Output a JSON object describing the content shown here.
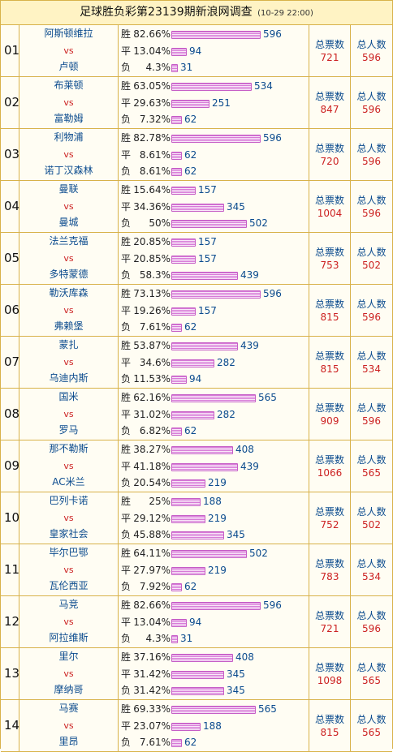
{
  "title": "足球胜负彩第23139期新浪网调查",
  "date": "(10-29 22:00)",
  "labels": {
    "vs": "vs",
    "win": "胜",
    "draw": "平",
    "lose": "负",
    "total_votes": "总票数",
    "total_people": "总人数"
  },
  "matches": [
    {
      "index": "01",
      "home": "阿斯顿维拉",
      "away": "卢顿",
      "win": {
        "pct": "82.66%",
        "count": 596
      },
      "draw": {
        "pct": "13.04%",
        "count": 94
      },
      "lose": {
        "pct": "4.3%",
        "count": 31
      },
      "votes": "721",
      "people": "596"
    },
    {
      "index": "02",
      "home": "布莱顿",
      "away": "富勒姆",
      "win": {
        "pct": "63.05%",
        "count": 534
      },
      "draw": {
        "pct": "29.63%",
        "count": 251
      },
      "lose": {
        "pct": "7.32%",
        "count": 62
      },
      "votes": "847",
      "people": "596"
    },
    {
      "index": "03",
      "home": "利物浦",
      "away": "诺丁汉森林",
      "win": {
        "pct": "82.78%",
        "count": 596
      },
      "draw": {
        "pct": "8.61%",
        "count": 62
      },
      "lose": {
        "pct": "8.61%",
        "count": 62
      },
      "votes": "720",
      "people": "596"
    },
    {
      "index": "04",
      "home": "曼联",
      "away": "曼城",
      "win": {
        "pct": "15.64%",
        "count": 157
      },
      "draw": {
        "pct": "34.36%",
        "count": 345
      },
      "lose": {
        "pct": "50%",
        "count": 502
      },
      "votes": "1004",
      "people": "596"
    },
    {
      "index": "05",
      "home": "法兰克福",
      "away": "多特蒙德",
      "win": {
        "pct": "20.85%",
        "count": 157
      },
      "draw": {
        "pct": "20.85%",
        "count": 157
      },
      "lose": {
        "pct": "58.3%",
        "count": 439
      },
      "votes": "753",
      "people": "502"
    },
    {
      "index": "06",
      "home": "勒沃库森",
      "away": "弗赖堡",
      "win": {
        "pct": "73.13%",
        "count": 596
      },
      "draw": {
        "pct": "19.26%",
        "count": 157
      },
      "lose": {
        "pct": "7.61%",
        "count": 62
      },
      "votes": "815",
      "people": "596"
    },
    {
      "index": "07",
      "home": "蒙扎",
      "away": "乌迪内斯",
      "win": {
        "pct": "53.87%",
        "count": 439
      },
      "draw": {
        "pct": "34.6%",
        "count": 282
      },
      "lose": {
        "pct": "11.53%",
        "count": 94
      },
      "votes": "815",
      "people": "534"
    },
    {
      "index": "08",
      "home": "国米",
      "away": "罗马",
      "win": {
        "pct": "62.16%",
        "count": 565
      },
      "draw": {
        "pct": "31.02%",
        "count": 282
      },
      "lose": {
        "pct": "6.82%",
        "count": 62
      },
      "votes": "909",
      "people": "596"
    },
    {
      "index": "09",
      "home": "那不勒斯",
      "away": "AC米兰",
      "win": {
        "pct": "38.27%",
        "count": 408
      },
      "draw": {
        "pct": "41.18%",
        "count": 439
      },
      "lose": {
        "pct": "20.54%",
        "count": 219
      },
      "votes": "1066",
      "people": "565"
    },
    {
      "index": "10",
      "home": "巴列卡诺",
      "away": "皇家社会",
      "win": {
        "pct": "25%",
        "count": 188
      },
      "draw": {
        "pct": "29.12%",
        "count": 219
      },
      "lose": {
        "pct": "45.88%",
        "count": 345
      },
      "votes": "752",
      "people": "502"
    },
    {
      "index": "11",
      "home": "毕尔巴鄂",
      "away": "瓦伦西亚",
      "win": {
        "pct": "64.11%",
        "count": 502
      },
      "draw": {
        "pct": "27.97%",
        "count": 219
      },
      "lose": {
        "pct": "7.92%",
        "count": 62
      },
      "votes": "783",
      "people": "534"
    },
    {
      "index": "12",
      "home": "马竞",
      "away": "阿拉维斯",
      "win": {
        "pct": "82.66%",
        "count": 596
      },
      "draw": {
        "pct": "13.04%",
        "count": 94
      },
      "lose": {
        "pct": "4.3%",
        "count": 31
      },
      "votes": "721",
      "people": "596"
    },
    {
      "index": "13",
      "home": "里尔",
      "away": "摩纳哥",
      "win": {
        "pct": "37.16%",
        "count": 408
      },
      "draw": {
        "pct": "31.42%",
        "count": 345
      },
      "lose": {
        "pct": "31.42%",
        "count": 345
      },
      "votes": "1098",
      "people": "565"
    },
    {
      "index": "14",
      "home": "马赛",
      "away": "里昂",
      "win": {
        "pct": "69.33%",
        "count": 565
      },
      "draw": {
        "pct": "23.07%",
        "count": 188
      },
      "lose": {
        "pct": "7.61%",
        "count": 62
      },
      "votes": "815",
      "people": "565"
    }
  ]
}
